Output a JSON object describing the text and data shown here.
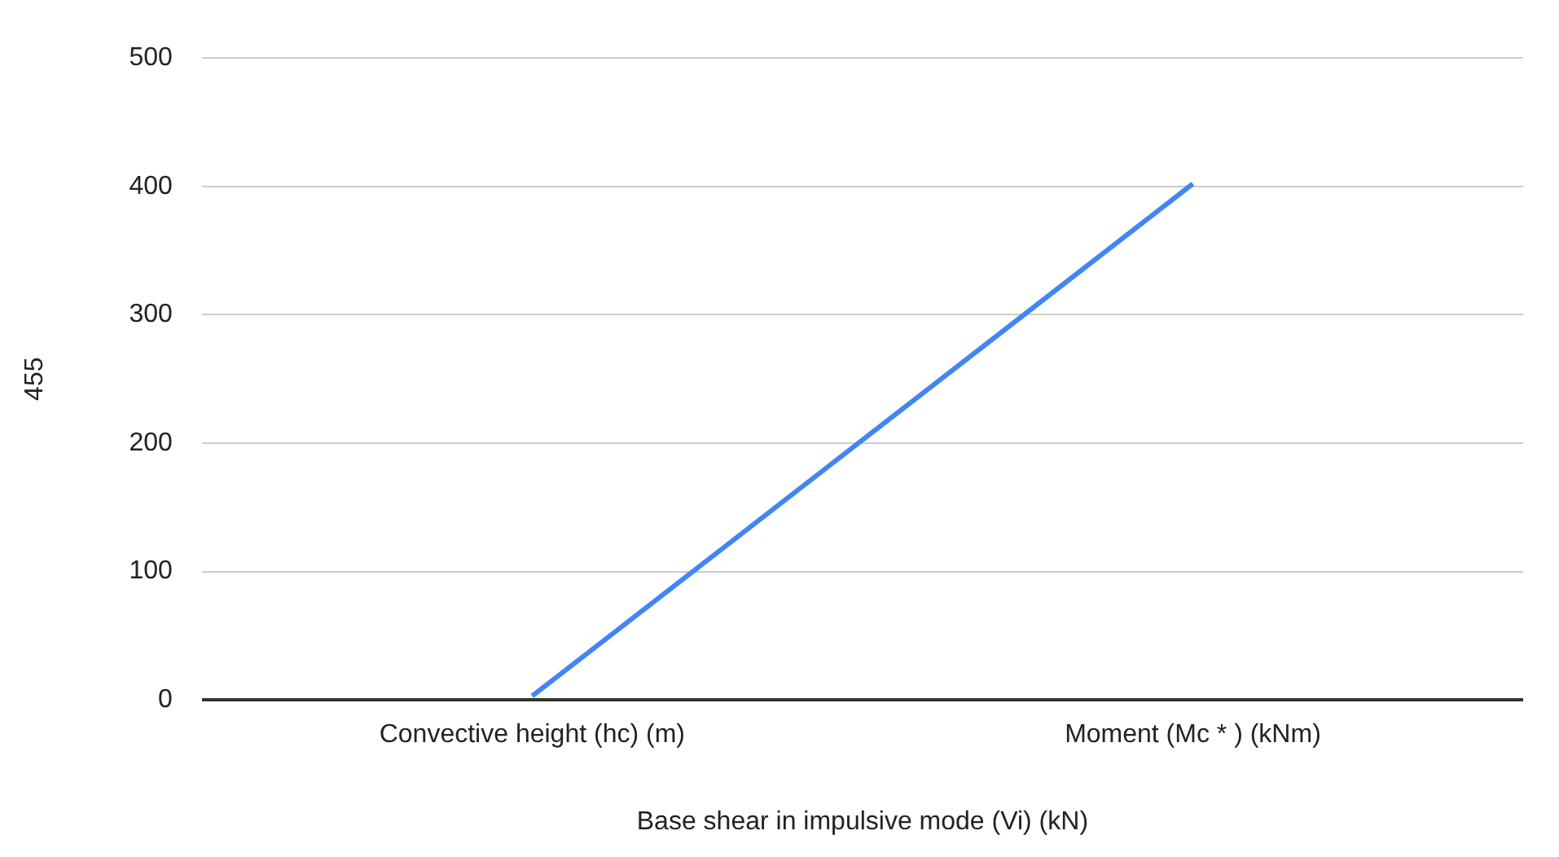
{
  "chart_data": {
    "type": "line",
    "xlabel": "Base shear in impulsive mode (Vi) (kN)",
    "ylabel": "455",
    "categories": [
      "Convective height (hc) (m)",
      "Moment (Mc * ) (kNm)"
    ],
    "series": [
      {
        "color": "#4285f4",
        "values": [
          3,
          402
        ]
      }
    ],
    "ylim": [
      0,
      500
    ],
    "yticks": [
      0,
      100,
      200,
      300,
      400,
      500
    ],
    "grid": "y",
    "legend": false,
    "marker": "none",
    "line_style": "solid"
  }
}
